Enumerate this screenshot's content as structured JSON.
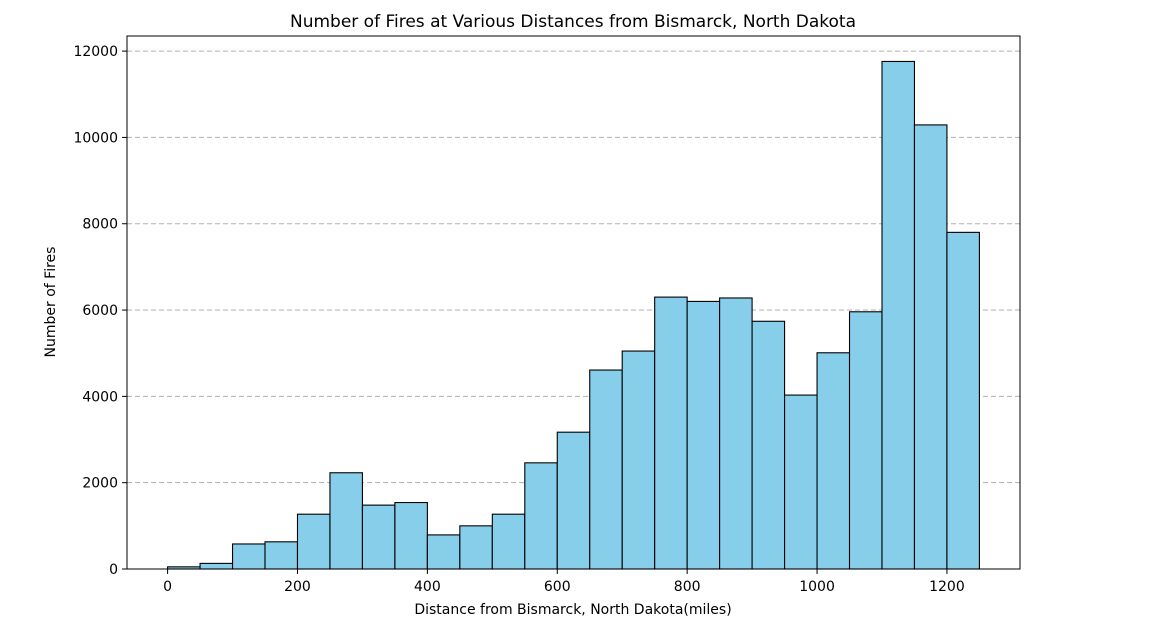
{
  "chart_data": {
    "type": "bar",
    "title": "Number of Fires at Various Distances from Bismarck, North Dakota",
    "xlabel": "Distance from Bismarck, North Dakota(miles)",
    "ylabel": "Number of Fires",
    "bin_width": 50,
    "bins": [
      {
        "start": 0,
        "end": 50,
        "value": 50
      },
      {
        "start": 50,
        "end": 100,
        "value": 130
      },
      {
        "start": 100,
        "end": 150,
        "value": 580
      },
      {
        "start": 150,
        "end": 200,
        "value": 630
      },
      {
        "start": 200,
        "end": 250,
        "value": 1270
      },
      {
        "start": 250,
        "end": 300,
        "value": 2230
      },
      {
        "start": 300,
        "end": 350,
        "value": 1480
      },
      {
        "start": 350,
        "end": 400,
        "value": 1540
      },
      {
        "start": 400,
        "end": 450,
        "value": 790
      },
      {
        "start": 450,
        "end": 500,
        "value": 1000
      },
      {
        "start": 500,
        "end": 550,
        "value": 1270
      },
      {
        "start": 550,
        "end": 600,
        "value": 2460
      },
      {
        "start": 600,
        "end": 650,
        "value": 3170
      },
      {
        "start": 650,
        "end": 700,
        "value": 4610
      },
      {
        "start": 700,
        "end": 750,
        "value": 5050
      },
      {
        "start": 750,
        "end": 800,
        "value": 6300
      },
      {
        "start": 800,
        "end": 850,
        "value": 6200
      },
      {
        "start": 850,
        "end": 900,
        "value": 6280
      },
      {
        "start": 900,
        "end": 950,
        "value": 5740
      },
      {
        "start": 950,
        "end": 1000,
        "value": 4030
      },
      {
        "start": 1000,
        "end": 1050,
        "value": 5010
      },
      {
        "start": 1050,
        "end": 1100,
        "value": 5960
      },
      {
        "start": 1100,
        "end": 1150,
        "value": 11760
      },
      {
        "start": 1150,
        "end": 1200,
        "value": 10290
      },
      {
        "start": 1200,
        "end": 1250,
        "value": 7800
      }
    ],
    "xlim": [
      -62.5,
      1312.5
    ],
    "ylim": [
      0,
      12350
    ],
    "xticks": [
      0,
      200,
      400,
      600,
      800,
      1000,
      1200
    ],
    "yticks": [
      0,
      2000,
      4000,
      6000,
      8000,
      10000,
      12000
    ],
    "grid": "y-dashed",
    "bar_color": "#87ceeb",
    "edge_color": "#000000"
  }
}
